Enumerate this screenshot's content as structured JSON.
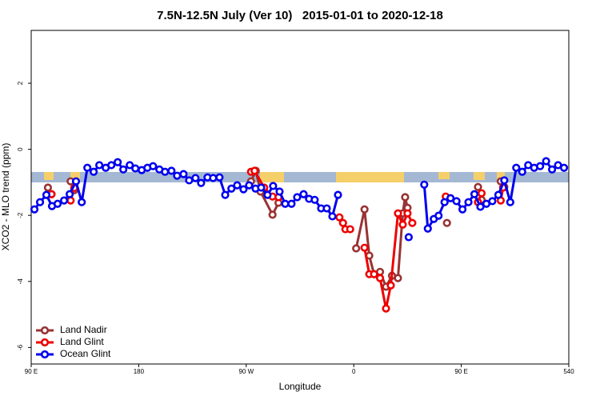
{
  "chart_data": {
    "type": "line",
    "title": "7.5N-12.5N July (Ver 10)   2015-01-01 to 2020-12-18",
    "x_label": "Longitude",
    "y_label": "XCO2 - MLO trend (ppm)",
    "xlim": [
      90,
      540
    ],
    "ylim": [
      -6.5,
      3.6
    ],
    "xticks": [
      {
        "value": 90,
        "label": "90 E"
      },
      180,
      {
        "value": 270,
        "label": "90 W"
      },
      {
        "value": 360,
        "label": "0"
      },
      {
        "value": 450,
        "label": "90 E"
      },
      540
    ],
    "yticks": [
      -6,
      -4,
      -2,
      0,
      2
    ],
    "legend": "bottom-left",
    "series": [
      {
        "name": "Land Nadir",
        "color": "#993333",
        "x": [
          103,
          104,
          107,
          null,
          123,
          126,
          null,
          274,
          278,
          282,
          292,
          297,
          null,
          362,
          369,
          373,
          377,
          382,
          387,
          392,
          397,
          401,
          403,
          405,
          null,
          438,
          null,
          464,
          467,
          null,
          483,
          486
        ],
        "values": [
          -1.38,
          -1.16,
          -1.36,
          null,
          -0.97,
          -1.24,
          null,
          -0.97,
          -0.65,
          -1.28,
          -1.98,
          -1.62,
          null,
          -3.0,
          -1.82,
          -3.22,
          -3.78,
          -3.71,
          -4.16,
          -3.83,
          -3.9,
          -1.94,
          -1.45,
          -1.77,
          null,
          -2.23,
          null,
          -1.14,
          -1.53,
          null,
          -0.97,
          -1.14
        ]
      },
      {
        "name": "Land Glint",
        "color": "#ee0000",
        "x": [
          107,
          null,
          123,
          126,
          null,
          274,
          277,
          285,
          292,
          297,
          null,
          348,
          351,
          353,
          357,
          null,
          369,
          373,
          377,
          382,
          387,
          391,
          397,
          401,
          405,
          409,
          null,
          437,
          null,
          464,
          467,
          null,
          483,
          485
        ],
        "values": [
          -1.36,
          null,
          -1.55,
          -1.17,
          null,
          -0.68,
          -0.65,
          -1.16,
          -1.43,
          -1.45,
          null,
          -2.06,
          -2.23,
          -2.42,
          -2.42,
          null,
          -2.98,
          -3.78,
          -3.78,
          -3.9,
          -4.82,
          -4.12,
          -1.94,
          -2.28,
          -1.94,
          -2.23,
          null,
          -1.43,
          null,
          -1.6,
          -1.33,
          null,
          -1.55,
          -1.16
        ]
      },
      {
        "name": "Ocean Glint",
        "color": "#0000ee",
        "x": [
          92.7,
          97.4,
          102.7,
          107.4,
          112.1,
          117.5,
          122.2,
          127.5,
          132.3,
          137,
          142.3,
          147,
          152.4,
          157.1,
          162.4,
          167.1,
          172.5,
          177.2,
          182.5,
          187.3,
          192,
          197.3,
          202,
          207.4,
          212.1,
          217.5,
          222.2,
          227.5,
          232.2,
          237.6,
          242.3,
          247.6,
          252.4,
          257.6,
          262.4,
          267.7,
          272.4,
          277.8,
          282.5,
          287.8,
          292.5,
          297.9,
          302.6,
          307.9,
          312.6,
          318,
          322.6,
          327.3,
          332.7,
          337.4,
          342.1,
          346.8,
          null,
          406,
          null,
          419,
          422,
          427,
          431,
          436,
          441,
          446,
          451,
          456,
          461,
          466,
          471,
          476,
          481,
          486,
          491,
          496,
          501,
          506,
          511,
          516,
          521,
          526,
          531,
          536
        ],
        "values": [
          -1.82,
          -1.6,
          -1.38,
          -1.72,
          -1.65,
          -1.55,
          -1.36,
          -0.97,
          -1.6,
          -0.56,
          -0.68,
          -0.48,
          -0.56,
          -0.48,
          -0.39,
          -0.61,
          -0.48,
          -0.58,
          -0.63,
          -0.56,
          -0.51,
          -0.61,
          -0.68,
          -0.65,
          -0.8,
          -0.75,
          -0.94,
          -0.87,
          -1.02,
          -0.85,
          -0.87,
          -0.85,
          -1.38,
          -1.19,
          -1.09,
          -1.21,
          -1.09,
          -1.19,
          -1.16,
          -1.38,
          -1.11,
          -1.28,
          -1.65,
          -1.65,
          -1.45,
          -1.36,
          -1.5,
          -1.53,
          -1.79,
          -1.79,
          -2.03,
          -1.38,
          null,
          -2.66,
          null,
          -1.07,
          -2.4,
          -2.11,
          -2.01,
          -1.6,
          -1.48,
          -1.57,
          -1.82,
          -1.6,
          -1.36,
          -1.74,
          -1.65,
          -1.57,
          -1.38,
          -0.94,
          -1.6,
          -0.56,
          -0.68,
          -0.48,
          -0.56,
          -0.51,
          -0.36,
          -0.61,
          -0.48,
          -0.56
        ]
      }
    ]
  }
}
